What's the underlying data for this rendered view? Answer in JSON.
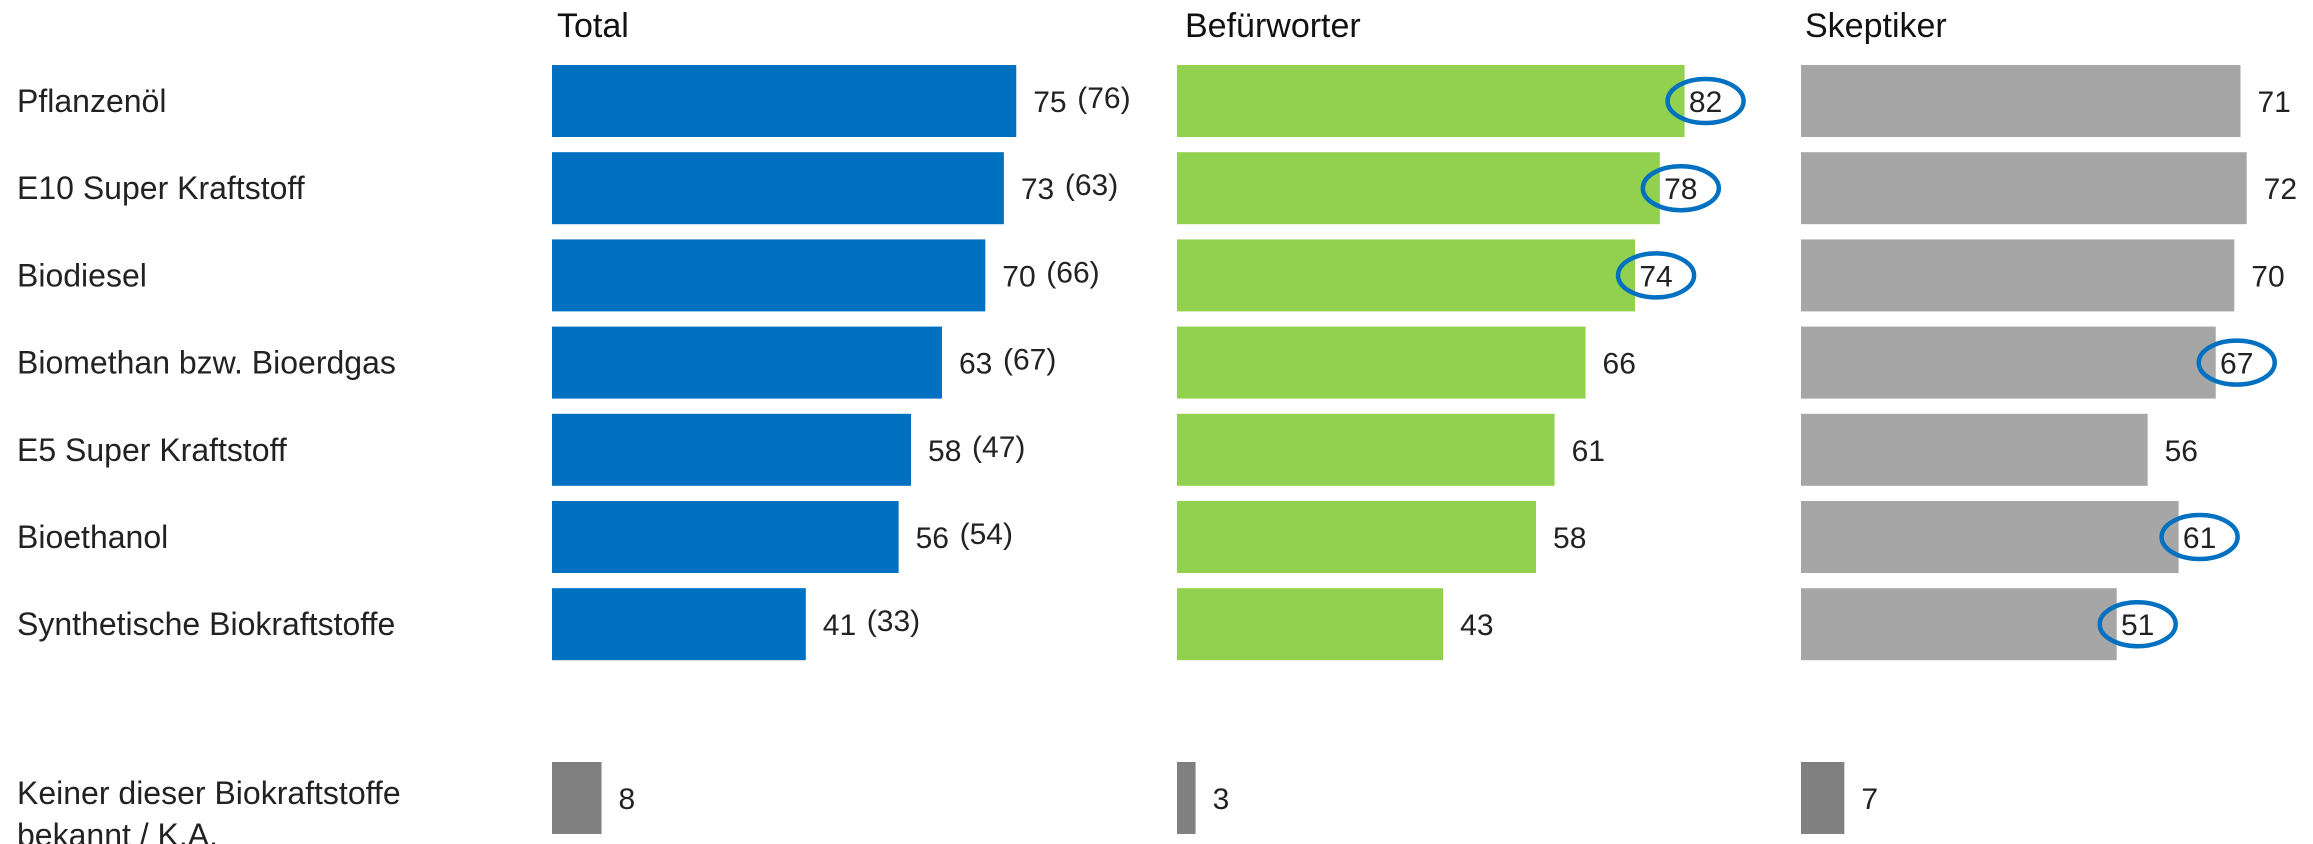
{
  "chart_data": {
    "type": "bar",
    "orientation": "horizontal",
    "categories": [
      "Pflanzenöl",
      "E10 Super Kraftstoff",
      "Biodiesel",
      "Biomethan bzw. Bioerdgas",
      "E5 Super Kraftstoff",
      "Bioethanol",
      "Synthetische Biokraftstoffe"
    ],
    "extra_category": [
      "Keiner dieser Biokraftstoffe",
      "bekannt / K.A."
    ],
    "xlim": [
      0,
      100
    ],
    "grid": false,
    "legend": "none",
    "series": [
      {
        "name": "Total",
        "color": "#0070C0",
        "values": [
          75,
          73,
          70,
          63,
          58,
          56,
          41
        ],
        "previous_values": [
          "(76)",
          "(63)",
          "(66)",
          "(67)",
          "(47)",
          "(54)",
          "(33)"
        ],
        "highlighted": [
          false,
          false,
          false,
          false,
          false,
          false,
          false
        ],
        "extra_value": 8
      },
      {
        "name": "Befürworter",
        "color": "#92D050",
        "values": [
          82,
          78,
          74,
          66,
          61,
          58,
          43
        ],
        "highlighted": [
          true,
          true,
          true,
          false,
          false,
          false,
          false
        ],
        "extra_value": 3
      },
      {
        "name": "Skeptiker",
        "color": "#A6A6A6",
        "values": [
          71,
          72,
          70,
          67,
          56,
          61,
          51
        ],
        "highlighted": [
          false,
          false,
          false,
          true,
          false,
          true,
          true
        ],
        "extra_value": 7
      }
    ],
    "extra_bar_color": "#808080",
    "highlight_color": "#0070C0"
  }
}
